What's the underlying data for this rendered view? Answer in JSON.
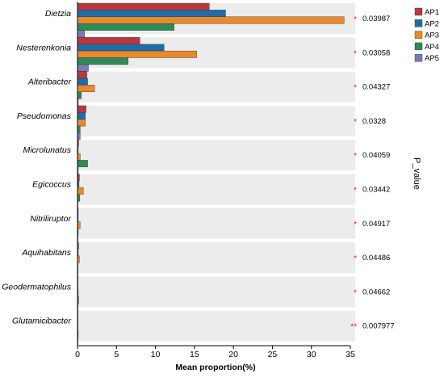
{
  "chart_data": {
    "type": "bar",
    "orientation": "horizontal",
    "categories": [
      "Dietzia",
      "Nesterenkonia",
      "Alteribacter",
      "Pseudomonas",
      "Microlunatus",
      "Egicoccus",
      "Nitriliruptor",
      "Aquihabitans",
      "Geodermatophilus",
      "Glutamicibacter"
    ],
    "series": [
      {
        "name": "AP1",
        "color": "#b8383e",
        "values": [
          16.9,
          8.0,
          1.2,
          1.1,
          0.15,
          0.25,
          0.1,
          0.15,
          0.05,
          0.05
        ]
      },
      {
        "name": "AP2",
        "color": "#1f6da8",
        "values": [
          19.0,
          11.1,
          1.3,
          1.0,
          0.1,
          0.2,
          0.1,
          0.1,
          0.05,
          0.05
        ]
      },
      {
        "name": "AP3",
        "color": "#e8892b",
        "values": [
          34.2,
          15.3,
          2.2,
          1.0,
          0.35,
          0.75,
          0.35,
          0.25,
          0.1,
          0.05
        ]
      },
      {
        "name": "AP4",
        "color": "#2e8b57",
        "values": [
          12.4,
          6.5,
          0.5,
          0.35,
          1.3,
          0.3,
          0.1,
          0.05,
          0.15,
          0.1
        ]
      },
      {
        "name": "AP5",
        "color": "#7a7bb3",
        "values": [
          0.9,
          1.4,
          0.1,
          0.35,
          0.1,
          0.05,
          0.05,
          0.05,
          0.05,
          0.05
        ]
      }
    ],
    "p_values": [
      "0.03987",
      "0.03058",
      "0.04327",
      "0.0328",
      "0.04059",
      "0.03442",
      "0.04917",
      "0.04486",
      "0.04662",
      "0.007977"
    ],
    "significance": [
      "*",
      "*",
      "*",
      "*",
      "*",
      "*",
      "*",
      "*",
      "*",
      "**"
    ],
    "xlabel": "Mean proportion(%)",
    "p_label": "P_value",
    "xlim": [
      0,
      35
    ],
    "xticks": [
      0,
      5,
      10,
      15,
      20,
      25,
      30,
      35
    ],
    "legend_position": "top-right",
    "grid": false,
    "row_background": "#ececec"
  }
}
